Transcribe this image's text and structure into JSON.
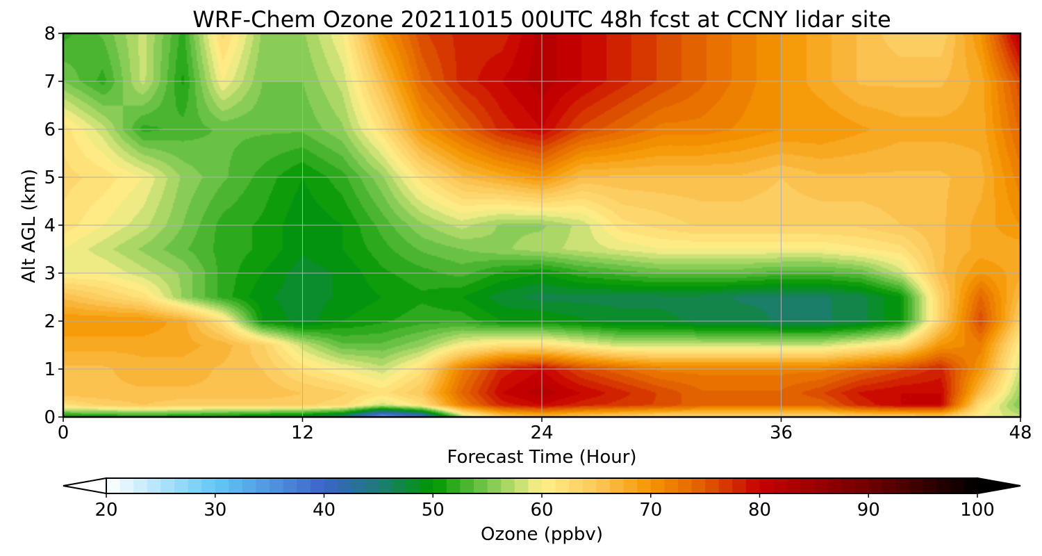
{
  "chart_data": {
    "type": "heatmap",
    "title": "WRF-Chem Ozone  20211015 00UTC 48h fcst at CCNY lidar site",
    "xlabel": "Forecast Time (Hour)",
    "ylabel": "Alt AGL (km)",
    "xlim": [
      0,
      48
    ],
    "ylim": [
      0,
      8
    ],
    "x_ticks": [
      0,
      12,
      24,
      36,
      48
    ],
    "y_ticks": [
      0,
      1,
      2,
      3,
      4,
      5,
      6,
      7,
      8
    ],
    "grid": true,
    "z_label": "Ozone  (ppbv)",
    "z_range": [
      20,
      100
    ],
    "colorbar": {
      "label": "Ozone  (ppbv)",
      "ticks": [
        20,
        30,
        40,
        50,
        60,
        70,
        80,
        90,
        100
      ],
      "extend": "both",
      "colors": [
        {
          "v": 20,
          "c": "#ffffff"
        },
        {
          "v": 30,
          "c": "#64c8f5"
        },
        {
          "v": 40,
          "c": "#3c64c8"
        },
        {
          "v": 45,
          "c": "#1e7a78"
        },
        {
          "v": 50,
          "c": "#009600"
        },
        {
          "v": 55,
          "c": "#78c850"
        },
        {
          "v": 60,
          "c": "#fff08c"
        },
        {
          "v": 65,
          "c": "#fcc85a"
        },
        {
          "v": 70,
          "c": "#f59600"
        },
        {
          "v": 75,
          "c": "#e05a00"
        },
        {
          "v": 80,
          "c": "#c80000"
        },
        {
          "v": 90,
          "c": "#6e0000"
        },
        {
          "v": 100,
          "c": "#000000"
        }
      ]
    },
    "grid_x_hours": [
      0,
      2,
      4,
      6,
      8,
      10,
      12,
      14,
      16,
      18,
      20,
      22,
      24,
      26,
      28,
      30,
      32,
      34,
      36,
      38,
      40,
      42,
      44,
      46,
      48
    ],
    "grid_y_km": [
      0,
      0.25,
      0.5,
      1,
      1.5,
      2,
      2.5,
      3,
      3.5,
      4,
      5,
      6,
      7,
      8
    ],
    "values_ppbv_rows_by_altitude": [
      [
        50,
        50,
        50,
        50,
        49,
        48,
        47,
        44,
        33,
        38,
        56,
        64,
        66,
        64,
        63,
        62,
        62,
        62,
        62,
        62,
        63,
        63,
        64,
        60,
        58
      ],
      [
        62,
        64,
        65,
        64,
        64,
        64,
        64,
        63,
        58,
        62,
        72,
        78,
        80,
        78,
        77,
        76,
        74,
        74,
        74,
        74,
        78,
        80,
        80,
        62,
        55
      ],
      [
        66,
        66,
        66,
        66,
        66,
        66,
        65,
        64,
        62,
        65,
        74,
        80,
        82,
        80,
        78,
        76,
        74,
        74,
        74,
        76,
        79,
        80,
        80,
        66,
        56
      ],
      [
        66,
        66,
        67,
        67,
        66,
        65,
        62,
        60,
        58,
        62,
        72,
        78,
        80,
        76,
        74,
        72,
        72,
        72,
        72,
        72,
        74,
        76,
        78,
        70,
        58
      ],
      [
        68,
        68,
        68,
        68,
        67,
        64,
        58,
        54,
        54,
        56,
        60,
        62,
        62,
        60,
        58,
        58,
        58,
        58,
        58,
        58,
        60,
        62,
        70,
        72,
        60
      ],
      [
        70,
        70,
        70,
        68,
        62,
        50,
        48,
        50,
        51,
        52,
        52,
        50,
        50,
        49,
        48,
        48,
        47,
        47,
        46,
        46,
        47,
        50,
        64,
        76,
        64
      ],
      [
        66,
        64,
        62,
        56,
        52,
        49,
        48,
        49,
        50,
        51,
        50,
        48,
        47,
        47,
        47,
        47,
        47,
        46,
        46,
        46,
        47,
        50,
        64,
        74,
        66
      ],
      [
        60,
        60,
        58,
        56,
        52,
        50,
        48,
        49,
        51,
        52,
        53,
        51,
        50,
        52,
        53,
        54,
        54,
        54,
        53,
        53,
        54,
        58,
        66,
        70,
        68
      ],
      [
        60,
        58,
        56,
        54,
        52,
        51,
        49,
        50,
        52,
        54,
        55,
        56,
        57,
        58,
        59,
        60,
        60,
        60,
        60,
        60,
        61,
        62,
        66,
        68,
        68
      ],
      [
        62,
        60,
        58,
        55,
        52,
        51,
        49,
        50,
        53,
        56,
        58,
        56,
        56,
        58,
        62,
        63,
        64,
        64,
        64,
        64,
        64,
        65,
        66,
        68,
        70
      ],
      [
        63,
        62,
        60,
        56,
        54,
        52,
        50,
        52,
        56,
        62,
        66,
        68,
        70,
        66,
        66,
        66,
        66,
        66,
        65,
        66,
        66,
        66,
        66,
        67,
        72
      ],
      [
        62,
        58,
        52,
        53,
        54,
        54,
        54,
        56,
        62,
        70,
        74,
        78,
        80,
        76,
        74,
        72,
        72,
        71,
        70,
        70,
        69,
        68,
        68,
        68,
        74
      ],
      [
        55,
        52,
        58,
        51,
        60,
        55,
        55,
        58,
        66,
        74,
        78,
        80,
        82,
        80,
        78,
        76,
        74,
        72,
        70,
        68,
        66,
        66,
        66,
        68,
        76
      ],
      [
        52,
        54,
        58,
        52,
        63,
        56,
        56,
        60,
        70,
        76,
        78,
        78,
        82,
        80,
        78,
        76,
        74,
        72,
        70,
        68,
        66,
        64,
        64,
        70,
        82
      ]
    ]
  }
}
